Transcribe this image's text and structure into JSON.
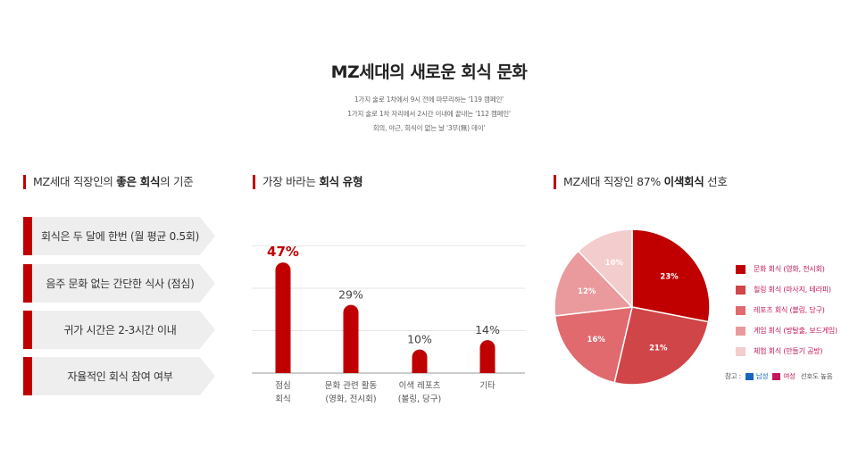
{
  "header": {
    "title": "MZ세대의 새로운 회식 문화",
    "subtitles": [
      "1가지 술로 1차에서 9시 전에 마무리하는 '119 캠페인'",
      "1가지 술로 1차 자리에서 2시간 이내에 끝내는 '112 캠페인'",
      "회의, 야근, 회식이 없는 날 '3무(無) 데이'"
    ]
  },
  "criteria": {
    "head_pre": "MZ세대 직장인의 ",
    "head_bold": "좋은 회식",
    "head_post": "의 기준",
    "items": [
      "회식은 두 달에 한번 (월 평균 0.5회)",
      "음주 문화 없는 간단한 식사 (점심)",
      "귀가 시간은 2-3시간 이내",
      "자율적인 회식 참여 여부"
    ]
  },
  "types": {
    "head_pre": "가장 바라는 ",
    "head_bold": "회식 유형",
    "head_post": ""
  },
  "prefer": {
    "head_pre": "MZ세대 직장인 87% ",
    "head_bold": "이색회식",
    "head_post": " 선호",
    "legend": [
      {
        "label": "문화 회식 (영화, 전시회)",
        "color": "#c00000"
      },
      {
        "label": "힐링 회식 (마사지, 테라피)",
        "color": "#d04548"
      },
      {
        "label": "레포츠 회식 (볼링, 당구)",
        "color": "#e06a6e"
      },
      {
        "label": "게임 회식 (방탈출, 보드게임)",
        "color": "#ea9a9c"
      },
      {
        "label": "체험 회식 (만들기 공방)",
        "color": "#f3cccd"
      }
    ],
    "note": {
      "prefix": "참고 :",
      "male": "남성",
      "male_color": "#1565c0",
      "female": "여성",
      "female_color": "#c2185b",
      "suffix": "선호도 높음"
    }
  },
  "chart_data": [
    {
      "type": "bar",
      "categories": [
        [
          "점심",
          "회식"
        ],
        [
          "문화 관련 활동",
          "(영화, 전시회)"
        ],
        [
          "이색 레포츠",
          "(볼링, 당구)"
        ],
        [
          "기타"
        ]
      ],
      "values": [
        47,
        29,
        10,
        14
      ],
      "value_labels": [
        "47%",
        "29%",
        "10%",
        "14%"
      ],
      "highlight_index": 0,
      "color": "#c00000",
      "ylim": [
        0,
        50
      ],
      "grid": true
    },
    {
      "type": "pie",
      "labels": [
        "문화 회식 (영화, 전시회)",
        "힐링 회식 (마사지, 테라피)",
        "레포츠 회식 (볼링, 당구)",
        "게임 회식 (방탈출, 보드게임)",
        "체험 회식 (만들기 공방)"
      ],
      "values": [
        23,
        21,
        16,
        12,
        10
      ],
      "value_labels": [
        "23%",
        "21%",
        "16%",
        "12%",
        "10%"
      ],
      "colors": [
        "#c00000",
        "#d04548",
        "#e06a6e",
        "#ea9a9c",
        "#f3cccd"
      ],
      "legend": "right"
    }
  ]
}
